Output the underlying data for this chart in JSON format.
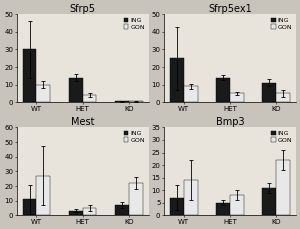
{
  "plots": [
    {
      "title": "Sfrp5",
      "ylim": [
        0,
        50
      ],
      "yticks": [
        0,
        10,
        20,
        30,
        40,
        50
      ],
      "categories": [
        "WT",
        "HET",
        "KO"
      ],
      "ING": [
        30,
        14,
        0.5
      ],
      "ING_err": [
        16,
        2,
        0.3
      ],
      "GON": [
        10,
        4,
        0.5
      ],
      "GON_err": [
        2,
        1,
        0.3
      ]
    },
    {
      "title": "Sfrp5ex1",
      "ylim": [
        0,
        50
      ],
      "yticks": [
        0,
        10,
        20,
        30,
        40,
        50
      ],
      "categories": [
        "WT",
        "HET",
        "KO"
      ],
      "ING": [
        25,
        14,
        11
      ],
      "ING_err": [
        18,
        1.5,
        2
      ],
      "GON": [
        9,
        5,
        5
      ],
      "GON_err": [
        1.5,
        1,
        2
      ]
    },
    {
      "title": "Mest",
      "ylim": [
        0,
        60
      ],
      "yticks": [
        0,
        10,
        20,
        30,
        40,
        50,
        60
      ],
      "categories": [
        "WT",
        "HET",
        "KO"
      ],
      "ING": [
        11,
        3,
        7
      ],
      "ING_err": [
        10,
        1,
        2
      ],
      "GON": [
        27,
        5,
        22
      ],
      "GON_err": [
        20,
        2,
        4
      ]
    },
    {
      "title": "Bmp3",
      "ylim": [
        0,
        35
      ],
      "yticks": [
        0,
        5,
        10,
        15,
        20,
        25,
        30,
        35
      ],
      "categories": [
        "WT",
        "HET",
        "KO"
      ],
      "ING": [
        7,
        5,
        11
      ],
      "ING_err": [
        5,
        1,
        2
      ],
      "GON": [
        14,
        8,
        22
      ],
      "GON_err": [
        8,
        2,
        4
      ]
    }
  ],
  "ING_color": "#1a1a1a",
  "GON_color": "#e8e8e8",
  "bar_width": 0.3,
  "background_color": "#c8c4bc",
  "plot_bg": "#e8e4dc",
  "fontsize_title": 7,
  "fontsize_tick": 5,
  "fontsize_legend": 4.5
}
